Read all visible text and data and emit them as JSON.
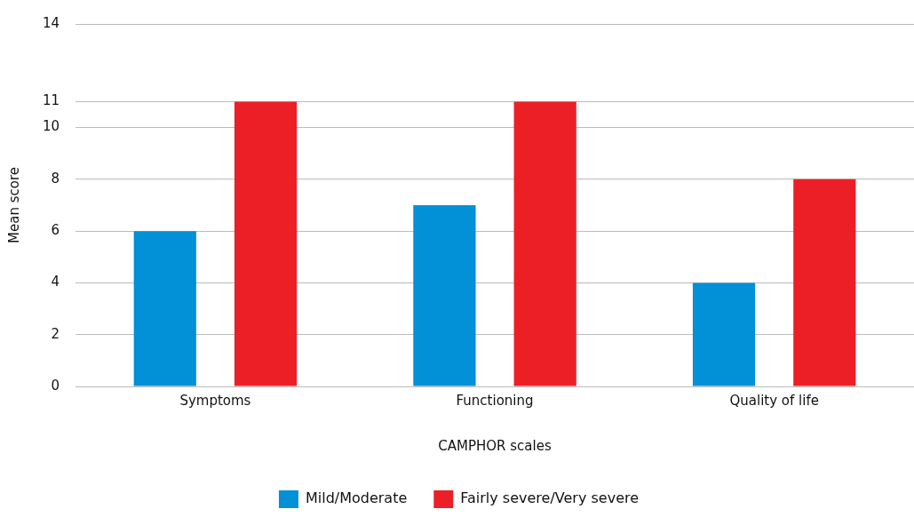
{
  "chart_data": {
    "type": "bar",
    "xlabel": "CAMPHOR scales",
    "ylabel": "Mean score",
    "categories": [
      "Symptoms",
      "Functioning",
      "Quality of life"
    ],
    "series": [
      {
        "name": "Mild/Moderate",
        "color": "#0290d6",
        "values": [
          6,
          7,
          4
        ]
      },
      {
        "name": "Fairly severe/Very severe",
        "color": "#ed1f26",
        "values": [
          11,
          11,
          8
        ]
      }
    ],
    "ylim": [
      0,
      14
    ],
    "yticks": [
      0,
      2,
      4,
      6,
      8,
      10,
      11,
      14
    ],
    "grid": "y",
    "legend": "bottom"
  }
}
